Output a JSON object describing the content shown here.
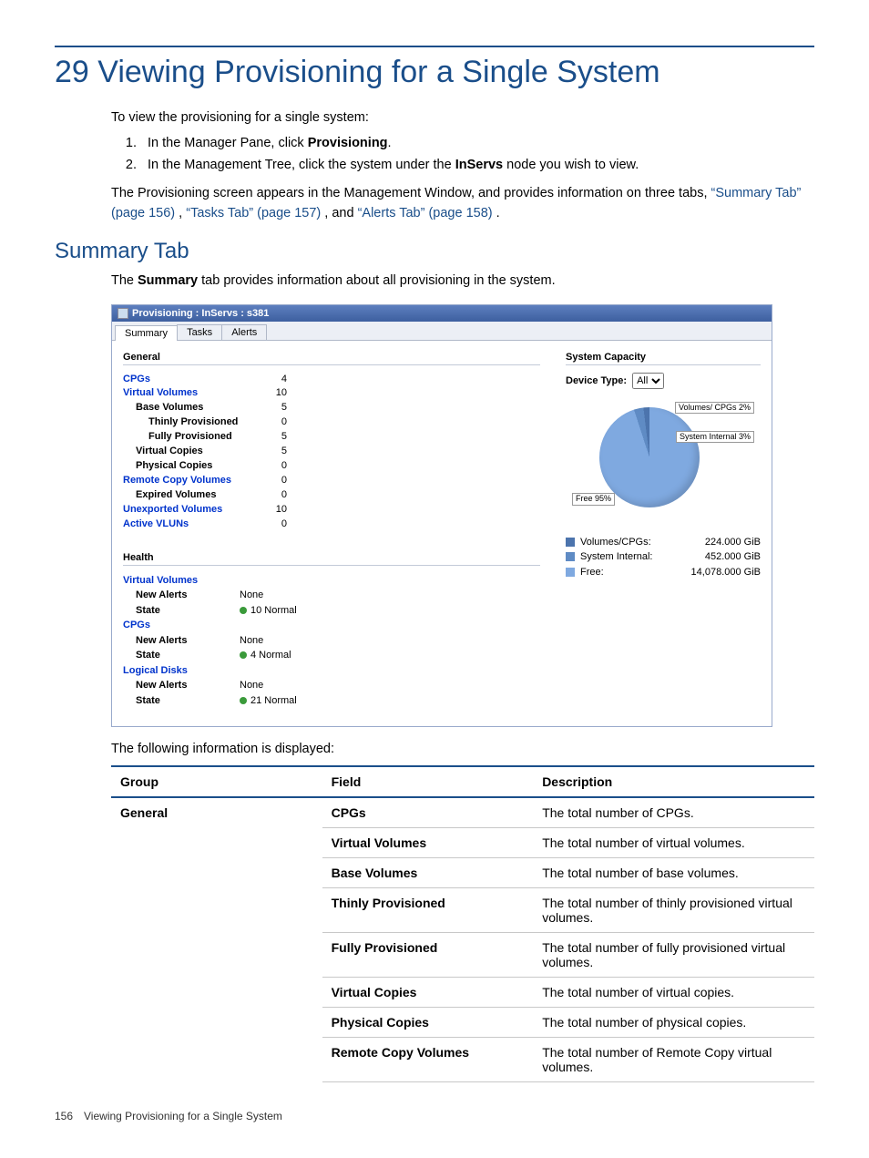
{
  "page": {
    "chapter_title": "29 Viewing Provisioning for a Single System",
    "intro": "To view the provisioning for a single system:",
    "step1_pre": "In the Manager Pane, click ",
    "step1_bold": "Provisioning",
    "step1_post": ".",
    "step2_pre": "In the Management Tree, click the system under the ",
    "step2_bold": "InServs",
    "step2_post": " node you wish to view.",
    "after_steps_pre": "The Provisioning screen appears in the Management Window, and provides information on three tabs, ",
    "link_summary": "“Summary Tab” (page 156)",
    "sep1": " , ",
    "link_tasks": "“Tasks Tab” (page 157)",
    "sep2": " , and ",
    "link_alerts": "“Alerts Tab” (page 158)",
    "after_steps_post": " .",
    "section_title": "Summary Tab",
    "summary_para_pre": "The ",
    "summary_para_bold": "Summary",
    "summary_para_post": " tab provides information about all provisioning in the system.",
    "following_info": "The following information is displayed:",
    "footer": "156 Viewing Provisioning for a Single System"
  },
  "shot": {
    "title": "Provisioning : InServs : s381",
    "tabs": {
      "summary": "Summary",
      "tasks": "Tasks",
      "alerts": "Alerts"
    },
    "general": {
      "header": "General",
      "rows": [
        {
          "label": "CPGs",
          "value": "4",
          "cls": "linkblue"
        },
        {
          "label": "Virtual Volumes",
          "value": "10",
          "cls": "linkblue"
        },
        {
          "label": "Base Volumes",
          "value": "5",
          "cls": "indent1"
        },
        {
          "label": "Thinly Provisioned",
          "value": "0",
          "cls": "indent2"
        },
        {
          "label": "Fully Provisioned",
          "value": "5",
          "cls": "indent2"
        },
        {
          "label": "Virtual Copies",
          "value": "5",
          "cls": "indent1"
        },
        {
          "label": "Physical Copies",
          "value": "0",
          "cls": "indent1"
        },
        {
          "label": "Remote Copy Volumes",
          "value": "0",
          "cls": "linkblue"
        },
        {
          "label": "Expired Volumes",
          "value": "0",
          "cls": "indent1"
        },
        {
          "label": "Unexported Volumes",
          "value": "10",
          "cls": "linkblue"
        },
        {
          "label": "Active VLUNs",
          "value": "0",
          "cls": "linkblue"
        }
      ]
    },
    "capacity": {
      "header": "System Capacity",
      "device_type_label": "Device Type:",
      "device_type_value": "All",
      "pie_labels": {
        "vols": "Volumes/\nCPGs 2%",
        "sys": "System\nInternal\n3%",
        "free": "Free 95%"
      },
      "colors": {
        "vols": "#4c74ad",
        "sys": "#5f8bc4",
        "free": "#7fa9e0"
      },
      "legend": [
        {
          "label": "Volumes/CPGs:",
          "value": "224.000 GiB",
          "color": "#4c74ad"
        },
        {
          "label": "System Internal:",
          "value": "452.000 GiB",
          "color": "#5f8bc4"
        },
        {
          "label": "Free:",
          "value": "14,078.000 GiB",
          "color": "#7fa9e0"
        }
      ]
    },
    "health": {
      "header": "Health",
      "groups": [
        {
          "title": "Virtual Volumes",
          "new_alerts_lbl": "New Alerts",
          "new_alerts_val": "None",
          "state_lbl": "State",
          "state_val": "10 Normal"
        },
        {
          "title": "CPGs",
          "new_alerts_lbl": "New Alerts",
          "new_alerts_val": "None",
          "state_lbl": "State",
          "state_val": "4 Normal"
        },
        {
          "title": "Logical Disks",
          "new_alerts_lbl": "New Alerts",
          "new_alerts_val": "None",
          "state_lbl": "State",
          "state_val": "21 Normal"
        }
      ]
    }
  },
  "table": {
    "headers": {
      "group": "Group",
      "field": "Field",
      "desc": "Description"
    },
    "group": "General",
    "rows": [
      {
        "field": "CPGs",
        "desc": "The total number of CPGs."
      },
      {
        "field": "Virtual Volumes",
        "desc": "The total number of virtual volumes."
      },
      {
        "field": "Base Volumes",
        "desc": "The total number of base volumes."
      },
      {
        "field": "Thinly Provisioned",
        "desc": "The total number of thinly provisioned virtual volumes."
      },
      {
        "field": "Fully Provisioned",
        "desc": "The total number of fully provisioned virtual volumes."
      },
      {
        "field": "Virtual Copies",
        "desc": "The total number of virtual copies."
      },
      {
        "field": "Physical Copies",
        "desc": "The total number of physical copies."
      },
      {
        "field": "Remote Copy Volumes",
        "desc": "The total number of Remote Copy virtual volumes."
      }
    ]
  }
}
